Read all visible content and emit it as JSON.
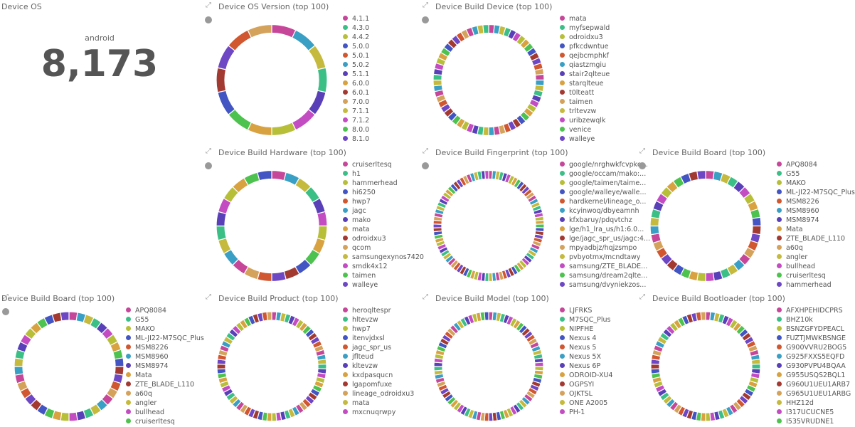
{
  "metric_panel": {
    "title": "Device OS",
    "label": "android",
    "value": 8173,
    "value_label": "8,173"
  },
  "palette": [
    "#c6479a",
    "#3cbf87",
    "#b7bf39",
    "#4255c2",
    "#d0572f",
    "#3a9fc4",
    "#5940b8",
    "#d9a241",
    "#a33a32",
    "#d4a25a",
    "#c5ba3e",
    "#c34cc3",
    "#4ec24e",
    "#6d47c4"
  ],
  "panels": [
    {
      "title": "Device OS Version (top 100)",
      "legend": [
        "4.1.1",
        "4.3.0",
        "4.4.2",
        "5.0.0",
        "5.0.1",
        "5.0.2",
        "5.1.1",
        "6.0.0",
        "6.0.1",
        "7.0.0",
        "7.1.1",
        "7.1.2",
        "8.0.0",
        "8.1.0"
      ]
    },
    {
      "title": "Device Build Device (top 100)",
      "legend": [
        "mata",
        "myfsepwald",
        "odroidxu3",
        "pfkcdwntue",
        "qejbcmphkf",
        "qiastzmgiu",
        "stair2qlteue",
        "starqlteue",
        "t0lteatt",
        "taimen",
        "trltevzw",
        "uribzewqlk",
        "venice",
        "walleye"
      ]
    },
    {
      "title": "Device Build Hardware (top 100)",
      "legend": [
        "cruiserltesq",
        "h1",
        "hammerhead",
        "hi6250",
        "hwp7",
        "jagc",
        "mako",
        "mata",
        "odroidxu3",
        "qcom",
        "samsungexynos7420",
        "smdk4x12",
        "taimen",
        "walleye"
      ]
    },
    {
      "title": "Device Build Fingerprint (top 100)",
      "legend": [
        "google/nrghwkfcvpke...",
        "google/occam/mako:...",
        "google/taimen/taime...",
        "google/walleye/walle...",
        "hardkernel/lineage_o...",
        "kcyinwoq/dbyeamnh",
        "kfxbaruy/pdqvtchz",
        "lge/h1_lra_us/h1:6.0...",
        "lge/jagc_spr_us/jagc:4...",
        "mpyadbjz/hqjzsmpo",
        "pvbyotmx/mcndtawy",
        "samsung/ZTE_BLADE...",
        "samsung/dream2qlte...",
        "samsung/dvyniekzos..."
      ]
    },
    {
      "title": "Device Build Board (top 100)",
      "legend": [
        "APQ8084",
        "G55",
        "MAKO",
        "ML-JI22-M7SQC_Plus",
        "MSM8226",
        "MSM8960",
        "MSM8974",
        "Mata",
        "ZTE_BLADE_L110",
        "a60q",
        "angler",
        "bullhead",
        "cruiserltesq",
        "hammerhead"
      ]
    },
    {
      "title": "Device Build Board (top 100)",
      "legend": [
        "APQ8084",
        "G55",
        "MAKO",
        "ML-JI22-M7SQC_Plus",
        "MSM8226",
        "MSM8960",
        "MSM8974",
        "Mata",
        "ZTE_BLADE_L110",
        "a60q",
        "angler",
        "bullhead",
        "cruiserltesq"
      ]
    },
    {
      "title": "Device Build Product (top 100)",
      "legend": [
        "heroqltespr",
        "hltevzw",
        "hwp7",
        "itenvjdxsl",
        "jagc_spr_us",
        "jflteud",
        "kltevzw",
        "kxdpasqucn",
        "lgapomfuxe",
        "lineage_odroidxu3",
        "mata",
        "mxcnuqrwpy"
      ]
    },
    {
      "title": "Device Build Model (top 100)",
      "legend": [
        "LJFRKS",
        "M7SQC_Plus",
        "NIPFHE",
        "Nexus 4",
        "Nexus 5",
        "Nexus 5X",
        "Nexus 6P",
        "ODROID-XU4",
        "OGPSYI",
        "OJKTSL",
        "ONE A2005",
        "PH-1"
      ]
    },
    {
      "title": "Device Build Bootloader (top 100)",
      "legend": [
        "AFXHPEHIDCPRS",
        "BHZ10k",
        "BSNZGFYDPEACL",
        "FUZTJMWKBSNGE",
        "G900VVRU2BOG5",
        "G925FXXS5EQFD",
        "G930PVPU4BQAA",
        "G955USQS2BQL1",
        "G960U1UEU1ARB7",
        "G965U1UEU1ARBG",
        "HHZ12d",
        "I317UCUCNE5",
        "I535VRUDNE1"
      ]
    }
  ]
}
